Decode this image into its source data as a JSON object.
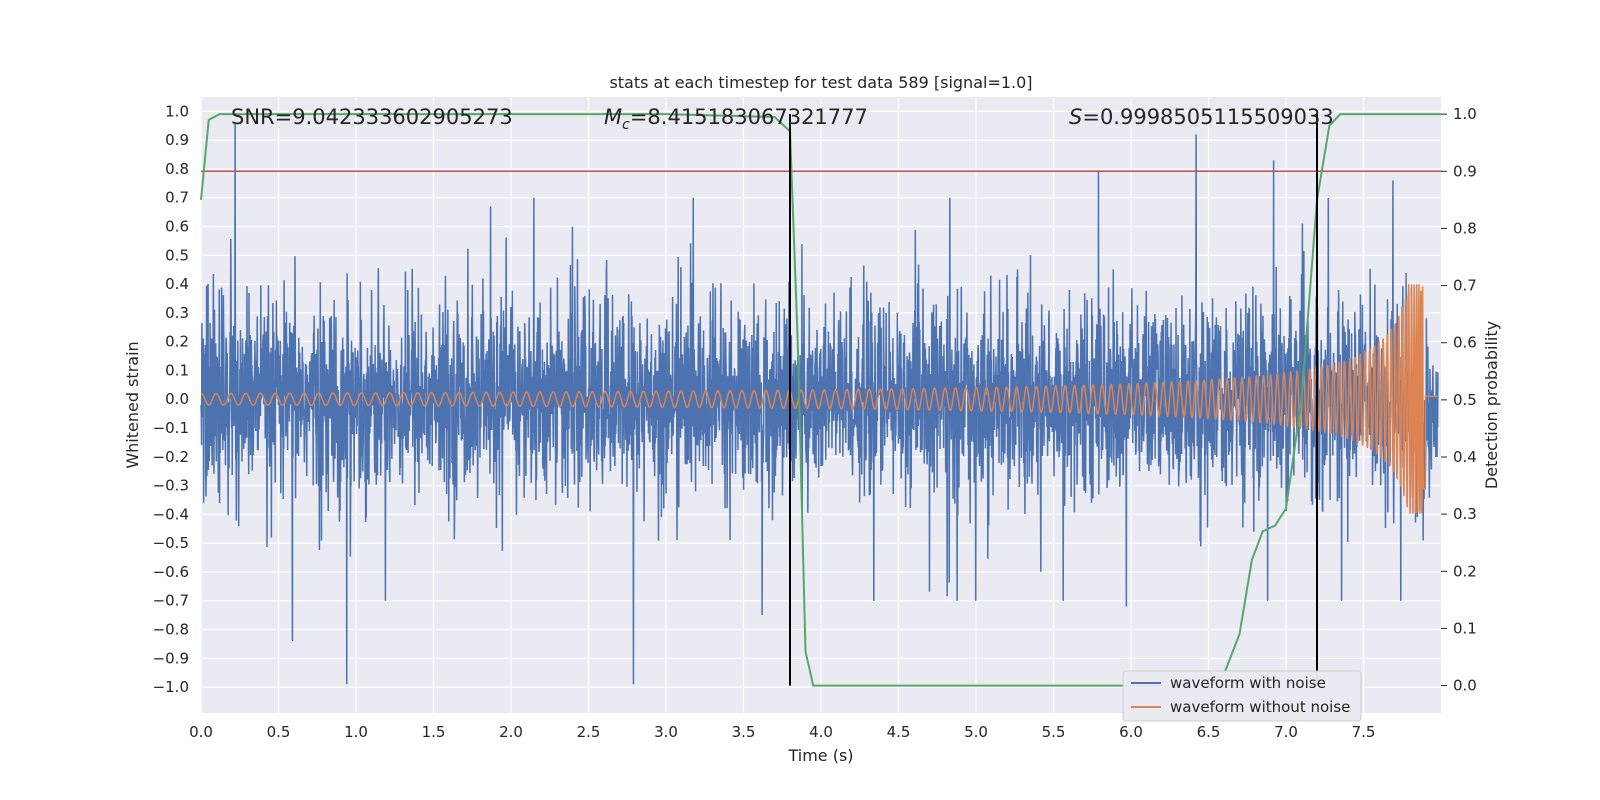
{
  "chart_data": {
    "type": "line",
    "title": "stats at each timestep for test data 589 [signal=1.0]",
    "xlabel": "Time (s)",
    "ylabel_left": "Whitened strain",
    "ylabel_right": "Detection probability",
    "xlim": [
      0.0,
      8.0
    ],
    "ylim_left": [
      -1.09,
      1.05
    ],
    "ylim_right": [
      -0.048,
      1.03
    ],
    "x_ticks": [
      "0.0",
      "0.5",
      "1.0",
      "1.5",
      "2.0",
      "2.5",
      "3.0",
      "3.5",
      "4.0",
      "4.5",
      "5.0",
      "5.5",
      "6.0",
      "6.5",
      "7.0",
      "7.5"
    ],
    "y_ticks_left": [
      "1.0",
      "0.9",
      "0.8",
      "0.7",
      "0.6",
      "0.5",
      "0.4",
      "0.3",
      "0.2",
      "0.1",
      "0.0",
      "−0.1",
      "−0.2",
      "−0.3",
      "−0.4",
      "−0.5",
      "−0.6",
      "−0.7",
      "−0.8",
      "−0.9",
      "−1.0"
    ],
    "y_ticks_right": [
      "1.0",
      "0.9",
      "0.8",
      "0.7",
      "0.6",
      "0.5",
      "0.4",
      "0.3",
      "0.2",
      "0.1",
      "0.0"
    ],
    "annotations": {
      "snr": "SNR=9.042333602905273",
      "mc_symbol": "M",
      "mc_sub": "c",
      "mc_value": "=8.415183067321777",
      "s_symbol": "S",
      "s_value": "=0.9998505115509033"
    },
    "threshold": {
      "value": 0.9,
      "axis": "right",
      "color": "#c44e52"
    },
    "vertical_lines": [
      3.8,
      7.2
    ],
    "legend": {
      "placement": "lower-right",
      "entries": [
        {
          "label": "waveform with noise",
          "color": "#4c72b0"
        },
        {
          "label": "waveform without noise",
          "color": "#dd8452"
        }
      ]
    },
    "series": [
      {
        "name": "waveform with noise",
        "axis": "left",
        "color": "#4c72b0",
        "description": "whitened noisy strain, approx ±0.45 typical, peaks to about 0.96 and −0.99",
        "typical_amplitude": 0.42,
        "spikes": [
          [
            0.22,
            0.96
          ],
          [
            0.94,
            -0.99
          ],
          [
            2.79,
            -0.99
          ],
          [
            0.59,
            -0.84
          ],
          [
            6.42,
            0.92
          ],
          [
            6.92,
            0.83
          ],
          [
            7.69,
            0.76
          ],
          [
            5.79,
            0.79
          ],
          [
            3.62,
            -0.75
          ],
          [
            5.97,
            -0.72
          ]
        ]
      },
      {
        "name": "waveform without noise",
        "axis": "left",
        "color": "#dd8452",
        "description": "chirp waveform, amplitude grows from about 0.02 to 0.4 near merger at ~7.9 s",
        "amplitude_start": 0.02,
        "amplitude_peak": 0.4,
        "merger_time": 7.9
      },
      {
        "name": "detection probability",
        "axis": "right",
        "color": "#55a868",
        "points": [
          [
            0.0,
            0.85
          ],
          [
            0.05,
            0.99
          ],
          [
            0.12,
            1.0
          ],
          [
            1.0,
            1.0
          ],
          [
            2.0,
            1.0
          ],
          [
            3.0,
            1.0
          ],
          [
            3.7,
            0.995
          ],
          [
            3.8,
            0.97
          ],
          [
            3.85,
            0.6
          ],
          [
            3.9,
            0.06
          ],
          [
            3.95,
            0.0
          ],
          [
            4.0,
            0.0
          ],
          [
            5.0,
            0.0
          ],
          [
            6.0,
            0.0
          ],
          [
            6.5,
            0.0
          ],
          [
            6.6,
            0.02
          ],
          [
            6.7,
            0.09
          ],
          [
            6.78,
            0.22
          ],
          [
            6.85,
            0.27
          ],
          [
            6.93,
            0.28
          ],
          [
            7.0,
            0.31
          ],
          [
            7.1,
            0.5
          ],
          [
            7.2,
            0.85
          ],
          [
            7.28,
            0.98
          ],
          [
            7.35,
            1.0
          ],
          [
            8.0,
            1.0
          ]
        ]
      }
    ]
  }
}
